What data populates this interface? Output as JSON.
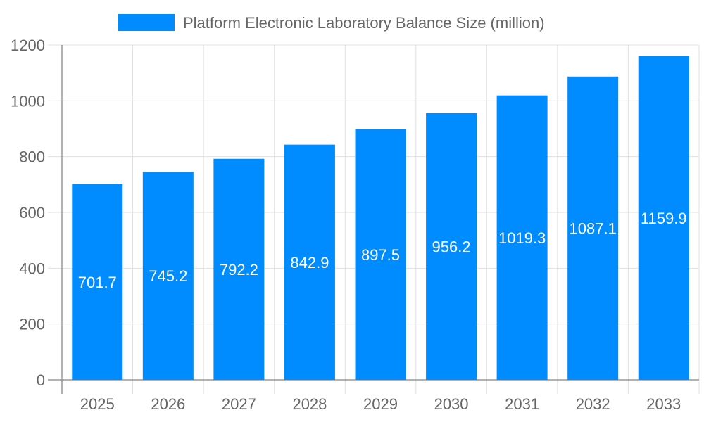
{
  "chart_data": {
    "type": "bar",
    "categories": [
      "2025",
      "2026",
      "2027",
      "2028",
      "2029",
      "2030",
      "2031",
      "2032",
      "2033"
    ],
    "series": [
      {
        "name": "Platform Electronic Laboratory Balance Size (million)",
        "values": [
          701.7,
          745.2,
          792.2,
          842.9,
          897.5,
          956.2,
          1019.3,
          1087.1,
          1159.9
        ]
      }
    ],
    "data_labels": [
      "701.7",
      "745.2",
      "792.2",
      "842.9",
      "897.5",
      "956.2",
      "1019.3",
      "1087.1",
      "1159.9"
    ],
    "title": "",
    "xlabel": "",
    "ylabel": "",
    "ylim": [
      0,
      1200
    ],
    "yticks": [
      "0",
      "200",
      "400",
      "600",
      "800",
      "1000",
      "1200"
    ],
    "grid": true,
    "legend_position": "top",
    "colors": {
      "bar": "#008cff",
      "grid": "#e0e0e0",
      "axis": "#999999",
      "text": "#666666"
    }
  }
}
